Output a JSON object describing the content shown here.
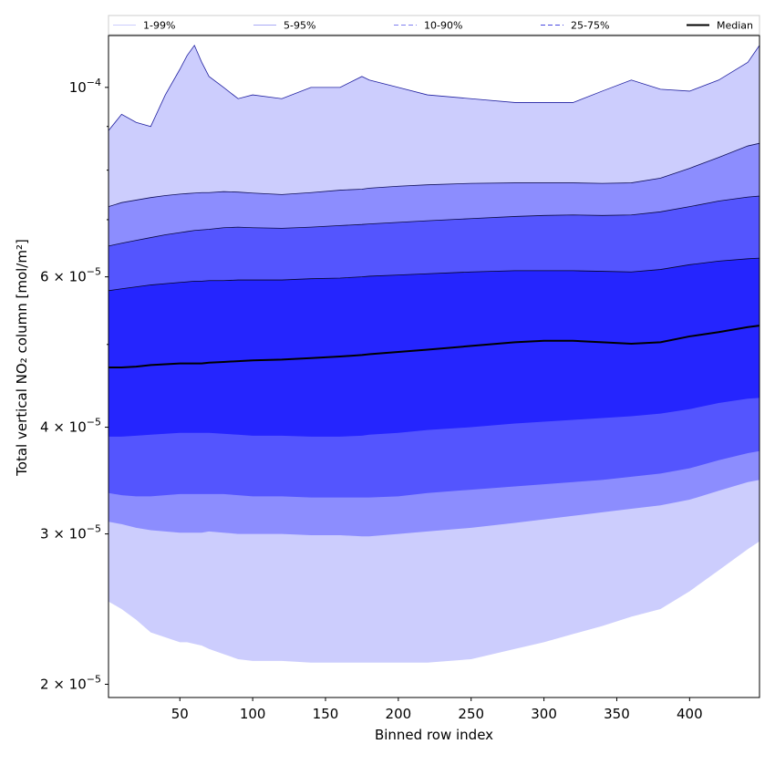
{
  "chart_data": {
    "type": "area",
    "xlabel": "Binned row index",
    "ylabel": "Total vertical NO₂ column [mol/m²]",
    "xlim": [
      1,
      448
    ],
    "ylim": [
      1.93e-05,
      0.000115
    ],
    "yscale": "log",
    "grid": false,
    "legend_placement": "top",
    "x_ticks": [
      50,
      100,
      150,
      200,
      250,
      300,
      350,
      400
    ],
    "x_tick_labels": [
      "50",
      "100",
      "150",
      "200",
      "250",
      "300",
      "350",
      "400"
    ],
    "y_ticks": [
      2e-05,
      3e-05,
      4e-05,
      6e-05,
      0.0001
    ],
    "y_tick_labels": [
      {
        "coef": "2",
        "exp": "−5"
      },
      {
        "coef": "3",
        "exp": "−5"
      },
      {
        "coef": "4",
        "exp": "−5"
      },
      {
        "coef": "6",
        "exp": "−5"
      }
    ],
    "y_tick_label_top": {
      "base": "10",
      "exp": "−4"
    },
    "x": [
      1,
      10,
      20,
      30,
      40,
      50,
      55,
      60,
      65,
      70,
      80,
      90,
      100,
      120,
      140,
      160,
      175,
      180,
      200,
      220,
      250,
      280,
      300,
      320,
      340,
      360,
      380,
      400,
      420,
      440,
      448
    ],
    "bands": [
      {
        "name": "1-99%",
        "color": "#cccdfd",
        "edgecolor": "#2020a0",
        "lower": [
          2.5e-05,
          2.45e-05,
          2.38e-05,
          2.3e-05,
          2.27e-05,
          2.24e-05,
          2.24e-05,
          2.23e-05,
          2.22e-05,
          2.2e-05,
          2.17e-05,
          2.14e-05,
          2.13e-05,
          2.13e-05,
          2.12e-05,
          2.12e-05,
          2.12e-05,
          2.12e-05,
          2.12e-05,
          2.12e-05,
          2.14e-05,
          2.2e-05,
          2.24e-05,
          2.29e-05,
          2.34e-05,
          2.4e-05,
          2.45e-05,
          2.57e-05,
          2.72e-05,
          2.88e-05,
          2.94e-05
        ],
        "upper": [
          8.9e-05,
          9.3e-05,
          9.1e-05,
          9e-05,
          9.8e-05,
          0.000105,
          0.000109,
          0.000112,
          0.000107,
          0.000103,
          0.0001,
          9.7e-05,
          9.8e-05,
          9.7e-05,
          0.0001,
          0.0001,
          0.000103,
          0.000102,
          0.0001,
          9.8e-05,
          9.7e-05,
          9.6e-05,
          9.6e-05,
          9.6e-05,
          9.9e-05,
          0.000102,
          9.95e-05,
          9.9e-05,
          0.000102,
          0.000107,
          0.000112
        ]
      },
      {
        "name": "5-95%",
        "color": "#8c8dfe",
        "edgecolor": "#10105a",
        "lower": [
          3.1e-05,
          3.08e-05,
          3.05e-05,
          3.03e-05,
          3.02e-05,
          3.01e-05,
          3.01e-05,
          3.01e-05,
          3.01e-05,
          3.02e-05,
          3.01e-05,
          3e-05,
          3e-05,
          3e-05,
          2.99e-05,
          2.99e-05,
          2.98e-05,
          2.98e-05,
          3e-05,
          3.02e-05,
          3.05e-05,
          3.09e-05,
          3.12e-05,
          3.15e-05,
          3.18e-05,
          3.21e-05,
          3.24e-05,
          3.29e-05,
          3.37e-05,
          3.45e-05,
          3.47e-05
        ],
        "upper": [
          7.25e-05,
          7.33e-05,
          7.38e-05,
          7.43e-05,
          7.47e-05,
          7.5e-05,
          7.51e-05,
          7.52e-05,
          7.53e-05,
          7.53e-05,
          7.55e-05,
          7.54e-05,
          7.52e-05,
          7.49e-05,
          7.53e-05,
          7.58e-05,
          7.6e-05,
          7.62e-05,
          7.66e-05,
          7.69e-05,
          7.72e-05,
          7.73e-05,
          7.73e-05,
          7.73e-05,
          7.72e-05,
          7.73e-05,
          7.83e-05,
          8.04e-05,
          8.28e-05,
          8.54e-05,
          8.6e-05
        ]
      },
      {
        "name": "10-90%",
        "color": "#5455fe",
        "edgecolor": "#0a0a40",
        "lower": [
          3.35e-05,
          3.33e-05,
          3.32e-05,
          3.32e-05,
          3.33e-05,
          3.34e-05,
          3.34e-05,
          3.34e-05,
          3.34e-05,
          3.34e-05,
          3.34e-05,
          3.33e-05,
          3.32e-05,
          3.32e-05,
          3.31e-05,
          3.31e-05,
          3.31e-05,
          3.31e-05,
          3.32e-05,
          3.35e-05,
          3.38e-05,
          3.41e-05,
          3.43e-05,
          3.45e-05,
          3.47e-05,
          3.5e-05,
          3.53e-05,
          3.58e-05,
          3.66e-05,
          3.73e-05,
          3.75e-05
        ],
        "upper": [
          6.52e-05,
          6.57e-05,
          6.62e-05,
          6.67e-05,
          6.72e-05,
          6.76e-05,
          6.78e-05,
          6.8e-05,
          6.81e-05,
          6.82e-05,
          6.85e-05,
          6.86e-05,
          6.85e-05,
          6.84e-05,
          6.86e-05,
          6.89e-05,
          6.91e-05,
          6.92e-05,
          6.95e-05,
          6.98e-05,
          7.02e-05,
          7.06e-05,
          7.08e-05,
          7.09e-05,
          7.08e-05,
          7.09e-05,
          7.15e-05,
          7.25e-05,
          7.36e-05,
          7.44e-05,
          7.46e-05
        ]
      },
      {
        "name": "25-75%",
        "color": "#2525fe",
        "edgecolor": "#05052a",
        "lower": [
          3.9e-05,
          3.9e-05,
          3.91e-05,
          3.92e-05,
          3.93e-05,
          3.94e-05,
          3.94e-05,
          3.94e-05,
          3.94e-05,
          3.94e-05,
          3.93e-05,
          3.92e-05,
          3.91e-05,
          3.91e-05,
          3.9e-05,
          3.9e-05,
          3.91e-05,
          3.92e-05,
          3.94e-05,
          3.97e-05,
          4e-05,
          4.04e-05,
          4.06e-05,
          4.08e-05,
          4.1e-05,
          4.12e-05,
          4.15e-05,
          4.2e-05,
          4.27e-05,
          4.32e-05,
          4.33e-05
        ],
        "upper": [
          5.78e-05,
          5.81e-05,
          5.84e-05,
          5.87e-05,
          5.89e-05,
          5.91e-05,
          5.92e-05,
          5.93e-05,
          5.93e-05,
          5.94e-05,
          5.94e-05,
          5.95e-05,
          5.95e-05,
          5.95e-05,
          5.97e-05,
          5.98e-05,
          6e-05,
          6.01e-05,
          6.03e-05,
          6.05e-05,
          6.08e-05,
          6.1e-05,
          6.1e-05,
          6.1e-05,
          6.09e-05,
          6.08e-05,
          6.12e-05,
          6.2e-05,
          6.26e-05,
          6.3e-05,
          6.31e-05
        ]
      }
    ],
    "series": [
      {
        "name": "Median",
        "color": "#000000",
        "values": [
          4.7e-05,
          4.7e-05,
          4.71e-05,
          4.73e-05,
          4.74e-05,
          4.75e-05,
          4.75e-05,
          4.75e-05,
          4.75e-05,
          4.76e-05,
          4.77e-05,
          4.78e-05,
          4.79e-05,
          4.8e-05,
          4.82e-05,
          4.84e-05,
          4.86e-05,
          4.87e-05,
          4.9e-05,
          4.93e-05,
          4.98e-05,
          5.03e-05,
          5.05e-05,
          5.05e-05,
          5.03e-05,
          5.01e-05,
          5.03e-05,
          5.11e-05,
          5.17e-05,
          5.24e-05,
          5.26e-05
        ]
      }
    ],
    "legend": [
      {
        "label": "1-99%",
        "color": "#cccdfd",
        "dash": "none"
      },
      {
        "label": "5-95%",
        "color": "#a9aaf6",
        "dash": "none"
      },
      {
        "label": "10-90%",
        "color": "#8080f0",
        "dash": "5,3"
      },
      {
        "label": "25-75%",
        "color": "#4848e0",
        "dash": "5,3"
      },
      {
        "label": "Median",
        "color": "#000000",
        "dash": "none"
      }
    ]
  }
}
